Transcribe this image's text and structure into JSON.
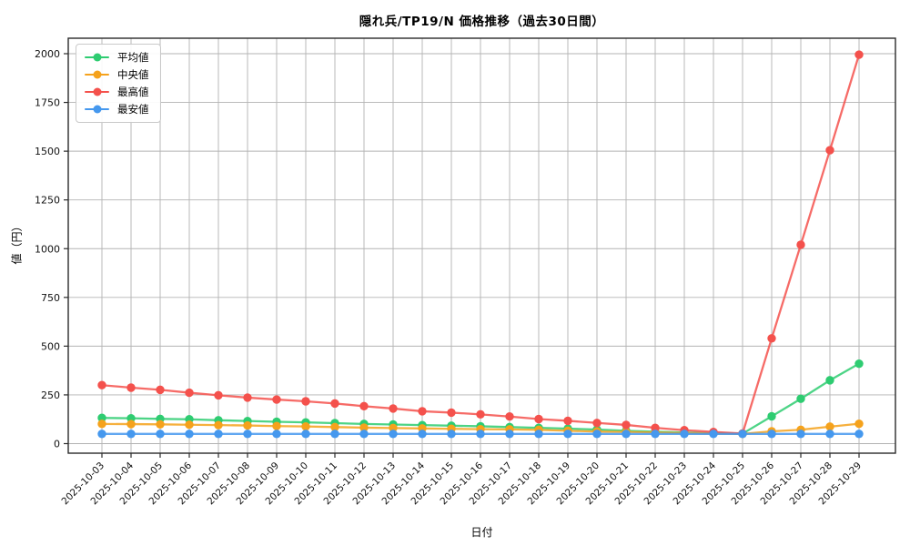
{
  "figure": {
    "title": "隠れ兵/TP19/N 価格推移（過去30日間）",
    "xlabel": "日付",
    "ylabel": "値（円）"
  },
  "chart_data": {
    "type": "line",
    "title": "隠れ兵/TP19/N 価格推移（過去30日間）",
    "xlabel": "日付",
    "ylabel": "値（円）",
    "ylim": [
      0,
      2000
    ],
    "yticks": [
      0,
      250,
      500,
      750,
      1000,
      1250,
      1500,
      1750,
      2000
    ],
    "grid": true,
    "legend_position": "upper-left",
    "marker": "circle",
    "categories": [
      "2025-10-03",
      "2025-10-04",
      "2025-10-05",
      "2025-10-06",
      "2025-10-07",
      "2025-10-08",
      "2025-10-09",
      "2025-10-10",
      "2025-10-11",
      "2025-10-12",
      "2025-10-13",
      "2025-10-14",
      "2025-10-15",
      "2025-10-16",
      "2025-10-17",
      "2025-10-18",
      "2025-10-19",
      "2025-10-20",
      "2025-10-21",
      "2025-10-22",
      "2025-10-23",
      "2025-10-24",
      "2025-10-25",
      "2025-10-26",
      "2025-10-27",
      "2025-10-28",
      "2025-10-29"
    ],
    "series": [
      {
        "key": "average",
        "name": "平均値",
        "color": "#2ecc71",
        "values": [
          132,
          130,
          127,
          125,
          120,
          116,
          112,
          109,
          105,
          101,
          98,
          95,
          92,
          89,
          85,
          81,
          77,
          72,
          66,
          61,
          57,
          54,
          51,
          140,
          230,
          325,
          410
        ]
      },
      {
        "key": "median",
        "name": "中央値",
        "color": "#f5a21c",
        "values": [
          101,
          100,
          99,
          97,
          95,
          93,
          90,
          88,
          85,
          82,
          80,
          78,
          76,
          74,
          73,
          71,
          66,
          62,
          60,
          57,
          54,
          52,
          50,
          63,
          71,
          87,
          102
        ]
      },
      {
        "key": "max",
        "name": "最高値",
        "color": "#f4514c",
        "values": [
          300,
          287,
          276,
          261,
          248,
          236,
          226,
          217,
          206,
          192,
          180,
          166,
          159,
          150,
          139,
          126,
          117,
          106,
          96,
          81,
          69,
          60,
          52,
          540,
          1020,
          1505,
          1995
        ]
      },
      {
        "key": "min",
        "name": "最安値",
        "color": "#4598ee",
        "values": [
          50,
          50,
          50,
          50,
          50,
          50,
          50,
          50,
          50,
          50,
          50,
          50,
          50,
          50,
          50,
          50,
          50,
          50,
          50,
          50,
          50,
          50,
          50,
          50,
          50,
          50,
          50
        ]
      }
    ]
  }
}
